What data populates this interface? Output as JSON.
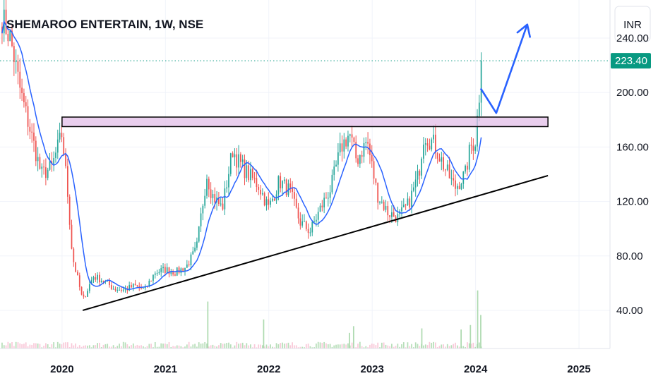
{
  "chart_data": {
    "type": "candlestick",
    "title": "SHEMAROO ENTERTAIN, 1W, NSE",
    "currency": "INR",
    "current_price": 223.4,
    "y_ticks": [
      240,
      200,
      160,
      120,
      80,
      40
    ],
    "y_tick_labels": [
      "240.00",
      "200.00",
      "160.00",
      "120.00",
      "80.00",
      "40.00"
    ],
    "ylim": [
      12,
      268
    ],
    "xlim": [
      2019.4,
      2025.3
    ],
    "x_ticks": [
      2020,
      2021,
      2022,
      2023,
      2024,
      2025
    ],
    "x_tick_labels": [
      "2020",
      "2021",
      "2022",
      "2023",
      "2024",
      "2025"
    ],
    "grid": true,
    "colors": {
      "up": "#26a69a",
      "down": "#ef5350",
      "ma": "#2962ff",
      "zone_fill": "#e1bee7",
      "trendline": "#000000",
      "arrow": "#2962ff",
      "price_label_bg": "#089981",
      "price_line": "#089981",
      "grid": "#f0f3fa"
    },
    "resistance_zone": {
      "y_low": 175,
      "y_high": 182,
      "x_start": 2020.0,
      "x_end": 2024.7
    },
    "trendline": {
      "x": [
        2020.2,
        2024.7
      ],
      "y": [
        40,
        139
      ]
    },
    "projection_arrow": {
      "x": [
        2024.05,
        2024.2,
        2024.5
      ],
      "y": [
        203,
        185,
        250
      ]
    },
    "price_path": {
      "dates": [
        2019.42,
        2019.5,
        2019.6,
        2019.7,
        2019.8,
        2019.9,
        2020.0,
        2020.05,
        2020.1,
        2020.2,
        2020.3,
        2020.4,
        2020.5,
        2020.6,
        2020.7,
        2020.8,
        2020.9,
        2021.0,
        2021.1,
        2021.2,
        2021.3,
        2021.4,
        2021.45,
        2021.55,
        2021.65,
        2021.7,
        2021.8,
        2021.9,
        2022.0,
        2022.1,
        2022.2,
        2022.3,
        2022.4,
        2022.5,
        2022.6,
        2022.7,
        2022.78,
        2022.85,
        2022.95,
        2023.05,
        2023.15,
        2023.25,
        2023.35,
        2023.45,
        2023.5,
        2023.6,
        2023.7,
        2023.8,
        2023.9,
        2023.95,
        2024.0,
        2024.02,
        2024.06
      ],
      "closes": [
        255,
        240,
        200,
        170,
        140,
        145,
        170,
        130,
        80,
        47,
        65,
        62,
        56,
        55,
        58,
        55,
        68,
        70,
        68,
        72,
        85,
        140,
        125,
        115,
        158,
        150,
        140,
        132,
        115,
        135,
        128,
        105,
        98,
        115,
        130,
        160,
        170,
        150,
        165,
        125,
        112,
        108,
        118,
        140,
        170,
        162,
        145,
        130,
        140,
        160,
        165,
        185,
        220
      ]
    },
    "volume_ylim": [
      0,
      60
    ],
    "volume_spikes": [
      {
        "x": 2021.41,
        "v": 42
      },
      {
        "x": 2021.95,
        "v": 26
      },
      {
        "x": 2022.82,
        "v": 20
      },
      {
        "x": 2022.78,
        "v": 14
      },
      {
        "x": 2023.48,
        "v": 18
      },
      {
        "x": 2023.86,
        "v": 17
      },
      {
        "x": 2023.95,
        "v": 21
      },
      {
        "x": 2024.02,
        "v": 52
      },
      {
        "x": 2024.05,
        "v": 30
      }
    ]
  }
}
